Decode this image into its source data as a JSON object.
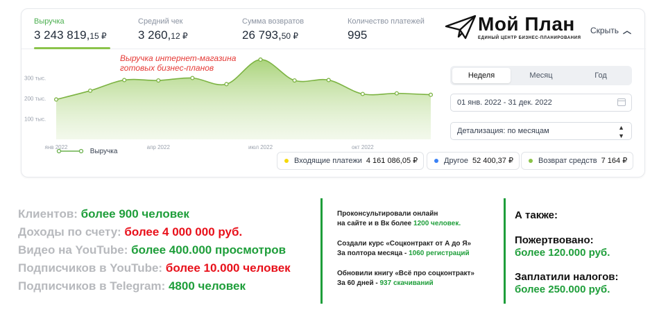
{
  "kpis": [
    {
      "label": "Выручка",
      "value_main": "3 243 819,",
      "value_cents": "15 ₽"
    },
    {
      "label": "Средний чек",
      "value_main": "3 260,",
      "value_cents": "12 ₽"
    },
    {
      "label": "Сумма возвратов",
      "value_main": "26 793,",
      "value_cents": "50 ₽"
    },
    {
      "label": "Количество платежей",
      "value_main": "995",
      "value_cents": ""
    }
  ],
  "logo": {
    "title": "Мой План",
    "subtitle": "ЕДИНЫЙ ЦЕНТР БИЗНЕС-ПЛАНИРОВАНИЯ"
  },
  "hide_label": "Скрыть",
  "annotation": {
    "line1": "Выручка интернет-магазина",
    "line2": "готовых бизнес-планов"
  },
  "chart_data": {
    "type": "area",
    "x": [
      "янв 2022",
      "фев 2022",
      "мар 2022",
      "апр 2022",
      "май 2022",
      "июн 2022",
      "июл 2022",
      "авг 2022",
      "сен 2022",
      "окт 2022",
      "ноя 2022",
      "дек 2022"
    ],
    "x_tick_labels": [
      "янв 2022",
      "апр 2022",
      "июл 2022",
      "окт 2022"
    ],
    "y_tick_labels": [
      "300 тыс.",
      "200 тыс.",
      "100 тыс."
    ],
    "y_ticks": [
      300000,
      200000,
      100000
    ],
    "ylim": [
      0,
      400000
    ],
    "series": [
      {
        "name": "Выручка",
        "values": [
          195000,
          238000,
          290000,
          288000,
          300000,
          270000,
          390000,
          288000,
          290000,
          222000,
          225000,
          218000
        ],
        "color": "#8bc34a"
      }
    ],
    "legend_position": "bottom-left",
    "grid": false
  },
  "periods": [
    "Неделя",
    "Месяц",
    "Год"
  ],
  "active_period": "Неделя",
  "date_range": "01 янв. 2022 - 31 дек. 2022",
  "detail_select": "Детализация: по месяцам",
  "chips": [
    {
      "label": "Входящие платежи",
      "amount": "4 161 086,05 ₽",
      "color": "#f5d90a"
    },
    {
      "label": "Другое",
      "amount": "52 400,37 ₽",
      "color": "#3b82f6"
    },
    {
      "label": "Возврат средств",
      "amount": "7 164 ₽",
      "color": "#8bc34a"
    }
  ],
  "stats": [
    {
      "label": "Клиентов: ",
      "value": "более 900 человек",
      "color": "green"
    },
    {
      "label": "Доходы по счету: ",
      "value": "более 4 000 000 руб.",
      "color": "red"
    },
    {
      "label": "Видео на YouTube: ",
      "value": "более 400.000 просмотров",
      "color": "green"
    },
    {
      "label": "Подписчиков в YouTube: ",
      "value": "более 10.000 человек",
      "color": "red"
    },
    {
      "label": "Подписчиков в Telegram: ",
      "value": "4800 человек",
      "color": "green"
    }
  ],
  "middle": [
    {
      "line1": "Проконсультировали онлайн",
      "line2_text": "на сайте и в Вк более ",
      "line2_highlight": "1200 человек."
    },
    {
      "line1": "Создали курс «Соцконтракт от А до Я»",
      "line2_text": "За полтора месяца - ",
      "line2_highlight": "1060 регистраций"
    },
    {
      "line1": "Обновили книгу «Всё про соцконтракт»",
      "line2_text": "За 60 дней - ",
      "line2_highlight": "937 скачиваний"
    }
  ],
  "right": {
    "heading": "А также:",
    "items": [
      {
        "label": "Пожертвовано:",
        "value": "более 120.000 руб."
      },
      {
        "label": "Заплатили налогов:",
        "value": "более 250.000 руб."
      }
    ]
  }
}
